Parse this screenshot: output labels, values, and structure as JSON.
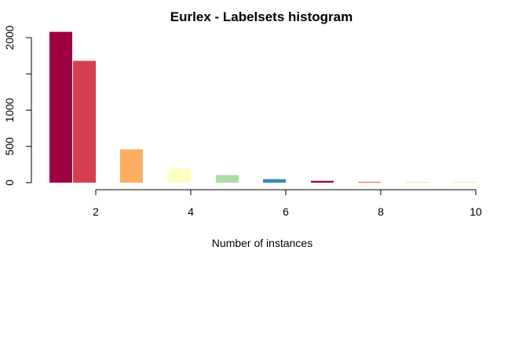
{
  "chart_data": {
    "type": "bar",
    "title": "Eurlex - Labelsets histogram",
    "xlabel": "Number of instances",
    "ylabel": "",
    "x": [
      1,
      2,
      3,
      4,
      5,
      6,
      7,
      8,
      9,
      10
    ],
    "values": [
      2080,
      1680,
      460,
      190,
      105,
      48,
      25,
      12,
      8,
      5
    ],
    "colors": [
      "#9e0142",
      "#d53e4f",
      "#fdae61",
      "#ffffbf",
      "#abdda4",
      "#3288bd",
      "#9e0142",
      "#f46d43",
      "#fee08b",
      "#e6f598"
    ],
    "xticks": [
      2,
      4,
      6,
      8,
      10
    ],
    "yticks": [
      0,
      500,
      1000,
      2000
    ],
    "ylim": [
      0,
      2000
    ],
    "grid": false
  }
}
